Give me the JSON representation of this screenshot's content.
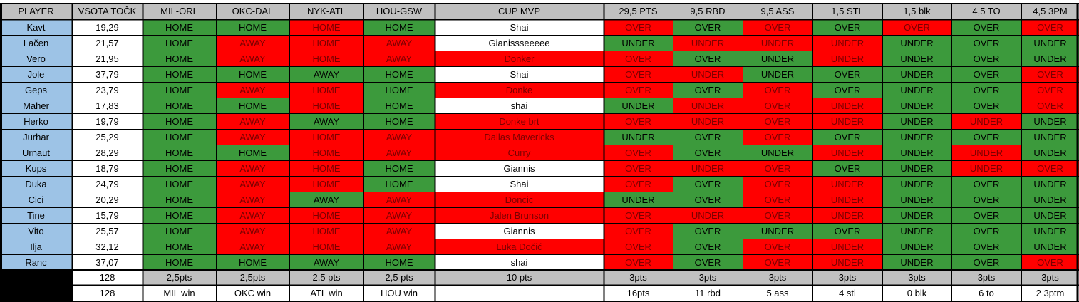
{
  "colors": {
    "header_bg": "#c0c0c0",
    "player_bg": "#9dc3e6",
    "green": "#3c9a3c",
    "red": "#ff0000",
    "white": "#ffffff",
    "grey": "#c0c0c0",
    "black": "#000000",
    "text_dark": "#000000",
    "text_on_red": "#7a0000"
  },
  "headers": [
    "PLAYER",
    "VSOTA TOČK",
    "MIL-ORL",
    "OKC-DAL",
    "NYK-ATL",
    "HOU-GSW",
    "CUP MVP",
    "29,5 PTS",
    "9,5 RBD",
    "9,5 ASS",
    "1,5 STL",
    "1,5 blk",
    "4,5 TO",
    "4,5 3PM"
  ],
  "rows": [
    {
      "player": "Kavt",
      "total": "19,29",
      "picks": [
        "HOME",
        "HOME",
        "HOME",
        "HOME",
        "Shai",
        "OVER",
        "OVER",
        "OVER",
        "OVER",
        "OVER",
        "OVER",
        "OVER"
      ],
      "status": [
        "g",
        "g",
        "r",
        "g",
        "w",
        "r",
        "g",
        "r",
        "g",
        "r",
        "g",
        "r"
      ]
    },
    {
      "player": "Lačen",
      "total": "21,57",
      "picks": [
        "HOME",
        "AWAY",
        "HOME",
        "AWAY",
        "Gianissseeeee",
        "UNDER",
        "UNDER",
        "UNDER",
        "UNDER",
        "UNDER",
        "OVER",
        "UNDER"
      ],
      "status": [
        "g",
        "r",
        "r",
        "r",
        "w",
        "g",
        "r",
        "r",
        "r",
        "g",
        "g",
        "g"
      ]
    },
    {
      "player": "Vero",
      "total": "21,95",
      "picks": [
        "HOME",
        "AWAY",
        "HOME",
        "AWAY",
        "Donker",
        "OVER",
        "OVER",
        "UNDER",
        "UNDER",
        "UNDER",
        "OVER",
        "UNDER"
      ],
      "status": [
        "g",
        "r",
        "r",
        "r",
        "r",
        "r",
        "g",
        "g",
        "r",
        "g",
        "g",
        "g"
      ]
    },
    {
      "player": "Jole",
      "total": "37,79",
      "picks": [
        "HOME",
        "HOME",
        "AWAY",
        "HOME",
        "Shai",
        "OVER",
        "UNDER",
        "UNDER",
        "OVER",
        "UNDER",
        "OVER",
        "OVER"
      ],
      "status": [
        "g",
        "g",
        "g",
        "g",
        "w",
        "r",
        "r",
        "g",
        "g",
        "g",
        "g",
        "r"
      ]
    },
    {
      "player": "Geps",
      "total": "23,79",
      "picks": [
        "HOME",
        "AWAY",
        "HOME",
        "HOME",
        "Donke",
        "OVER",
        "OVER",
        "OVER",
        "OVER",
        "UNDER",
        "OVER",
        "OVER"
      ],
      "status": [
        "g",
        "r",
        "r",
        "g",
        "r",
        "r",
        "g",
        "r",
        "g",
        "g",
        "g",
        "r"
      ]
    },
    {
      "player": "Maher",
      "total": "17,83",
      "picks": [
        "HOME",
        "HOME",
        "HOME",
        "HOME",
        "shai",
        "UNDER",
        "UNDER",
        "OVER",
        "UNDER",
        "UNDER",
        "OVER",
        "OVER"
      ],
      "status": [
        "g",
        "g",
        "r",
        "g",
        "w",
        "g",
        "r",
        "r",
        "r",
        "g",
        "g",
        "r"
      ]
    },
    {
      "player": "Herko",
      "total": "19,79",
      "picks": [
        "HOME",
        "AWAY",
        "AWAY",
        "HOME",
        "Donke brt",
        "OVER",
        "UNDER",
        "OVER",
        "UNDER",
        "UNDER",
        "UNDER",
        "UNDER"
      ],
      "status": [
        "g",
        "r",
        "g",
        "g",
        "r",
        "r",
        "r",
        "r",
        "r",
        "g",
        "r",
        "g"
      ]
    },
    {
      "player": "Jurhar",
      "total": "25,29",
      "picks": [
        "HOME",
        "AWAY",
        "HOME",
        "AWAY",
        "Dallas Mavericks",
        "UNDER",
        "OVER",
        "OVER",
        "OVER",
        "UNDER",
        "OVER",
        "UNDER"
      ],
      "status": [
        "g",
        "r",
        "r",
        "r",
        "r",
        "g",
        "g",
        "r",
        "g",
        "g",
        "g",
        "g"
      ]
    },
    {
      "player": "Urnaut",
      "total": "28,29",
      "picks": [
        "HOME",
        "HOME",
        "HOME",
        "AWAY",
        "Curry",
        "OVER",
        "OVER",
        "UNDER",
        "UNDER",
        "UNDER",
        "UNDER",
        "UNDER"
      ],
      "status": [
        "g",
        "g",
        "r",
        "r",
        "r",
        "r",
        "g",
        "g",
        "r",
        "g",
        "r",
        "g"
      ]
    },
    {
      "player": "Kups",
      "total": "18,79",
      "picks": [
        "HOME",
        "AWAY",
        "HOME",
        "HOME",
        "Giannis",
        "OVER",
        "UNDER",
        "OVER",
        "OVER",
        "UNDER",
        "UNDER",
        "OVER"
      ],
      "status": [
        "g",
        "r",
        "r",
        "g",
        "w",
        "r",
        "r",
        "r",
        "g",
        "g",
        "r",
        "r"
      ]
    },
    {
      "player": "Duka",
      "total": "24,79",
      "picks": [
        "HOME",
        "AWAY",
        "HOME",
        "HOME",
        "Shai",
        "OVER",
        "OVER",
        "OVER",
        "UNDER",
        "UNDER",
        "OVER",
        "UNDER"
      ],
      "status": [
        "g",
        "r",
        "r",
        "g",
        "w",
        "r",
        "g",
        "r",
        "r",
        "g",
        "g",
        "g"
      ]
    },
    {
      "player": "Cici",
      "total": "20,29",
      "picks": [
        "HOME",
        "AWAY",
        "AWAY",
        "AWAY",
        "Doncic",
        "UNDER",
        "OVER",
        "OVER",
        "UNDER",
        "UNDER",
        "OVER",
        "UNDER"
      ],
      "status": [
        "g",
        "r",
        "g",
        "r",
        "r",
        "g",
        "g",
        "r",
        "r",
        "g",
        "g",
        "g"
      ]
    },
    {
      "player": "Tine",
      "total": "15,79",
      "picks": [
        "HOME",
        "AWAY",
        "HOME",
        "AWAY",
        "Jalen Brunson",
        "OVER",
        "UNDER",
        "OVER",
        "UNDER",
        "UNDER",
        "OVER",
        "UNDER"
      ],
      "status": [
        "g",
        "r",
        "r",
        "r",
        "r",
        "r",
        "r",
        "r",
        "r",
        "g",
        "g",
        "g"
      ]
    },
    {
      "player": "Vito",
      "total": "25,57",
      "picks": [
        "HOME",
        "AWAY",
        "HOME",
        "AWAY",
        "Giannis",
        "OVER",
        "OVER",
        "UNDER",
        "OVER",
        "UNDER",
        "OVER",
        "UNDER"
      ],
      "status": [
        "g",
        "r",
        "r",
        "r",
        "w",
        "r",
        "g",
        "g",
        "g",
        "g",
        "g",
        "g"
      ]
    },
    {
      "player": "Ilja",
      "total": "32,12",
      "picks": [
        "HOME",
        "AWAY",
        "HOME",
        "AWAY",
        "Luka Dočić",
        "OVER",
        "OVER",
        "OVER",
        "UNDER",
        "UNDER",
        "OVER",
        "UNDER"
      ],
      "status": [
        "g",
        "r",
        "r",
        "r",
        "r",
        "r",
        "g",
        "r",
        "r",
        "g",
        "g",
        "g"
      ]
    },
    {
      "player": "Ranc",
      "total": "37,07",
      "picks": [
        "HOME",
        "HOME",
        "AWAY",
        "HOME",
        "shai",
        "OVER",
        "OVER",
        "OVER",
        "UNDER",
        "UNDER",
        "OVER",
        "OVER"
      ],
      "status": [
        "g",
        "g",
        "g",
        "g",
        "w",
        "r",
        "g",
        "r",
        "r",
        "g",
        "g",
        "r"
      ]
    }
  ],
  "points_row": {
    "total": "128",
    "cells": [
      "2,5pts",
      "2,5pts",
      "2,5 pts",
      "2,5 pts",
      "10 pts",
      "3pts",
      "3pts",
      "3pts",
      "3pts",
      "3pts",
      "3pts",
      "3pts"
    ]
  },
  "results_row": {
    "total": "128",
    "cells": [
      "MIL win",
      "OKC win",
      "ATL win",
      "HOU win",
      "",
      "16pts",
      "11 rbd",
      "5 ass",
      "4 stl",
      "0 blk",
      "6 to",
      "2 3ptm"
    ]
  }
}
